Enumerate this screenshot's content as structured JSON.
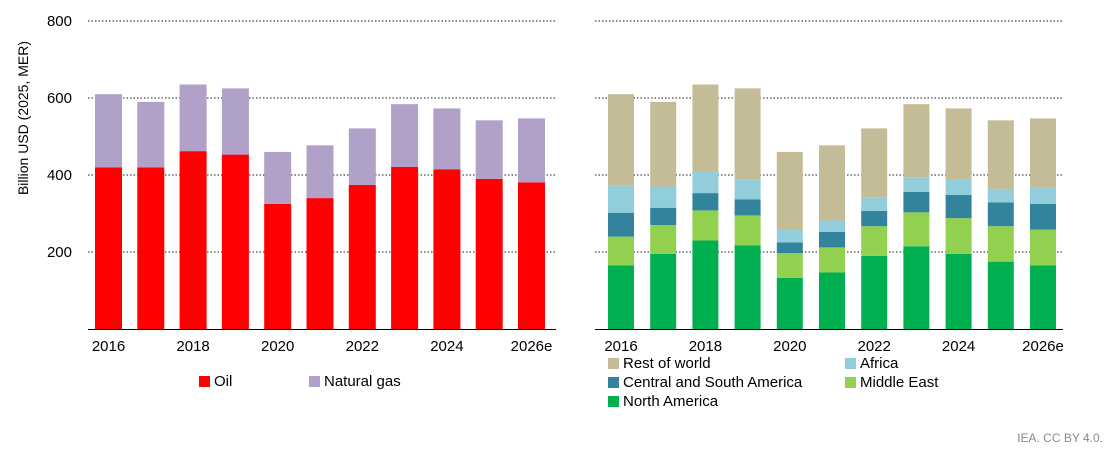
{
  "chart_data": [
    {
      "type": "bar",
      "stacked": true,
      "ylabel": "Billion USD (2025, MER)",
      "ylim": [
        0,
        800
      ],
      "yticks": [
        200,
        400,
        600,
        800
      ],
      "grid": true,
      "categories": [
        "2016",
        "2017",
        "2018",
        "2019",
        "2020",
        "2021",
        "2022",
        "2023",
        "2024",
        "2025",
        "2026e"
      ],
      "xtick_labels": [
        "2016",
        "2018",
        "2020",
        "2022",
        "2024",
        "2026e"
      ],
      "legend_position": "bottom",
      "series": [
        {
          "name": "Oil",
          "color": "#ff0000",
          "values": [
            420,
            420,
            462,
            453,
            325,
            340,
            374,
            421,
            415,
            390,
            381
          ]
        },
        {
          "name": "Natural gas",
          "color": "#b1a0c7",
          "values": [
            190,
            170,
            173,
            172,
            135,
            137,
            147,
            163,
            158,
            152,
            166
          ]
        }
      ]
    },
    {
      "type": "bar",
      "stacked": true,
      "ylim": [
        0,
        800
      ],
      "grid": true,
      "categories": [
        "2016",
        "2017",
        "2018",
        "2019",
        "2020",
        "2021",
        "2022",
        "2023",
        "2024",
        "2025",
        "2026e"
      ],
      "xtick_labels": [
        "2016",
        "2018",
        "2020",
        "2022",
        "2024",
        "2026e"
      ],
      "legend_position": "bottom",
      "series": [
        {
          "name": "North America",
          "color": "#00b050",
          "values": [
            165,
            195,
            230,
            217,
            133,
            147,
            190,
            215,
            195,
            175,
            165
          ]
        },
        {
          "name": "Middle East",
          "color": "#92d050",
          "values": [
            75,
            75,
            78,
            78,
            64,
            65,
            77,
            88,
            93,
            92,
            93
          ]
        },
        {
          "name": "Central and South America",
          "color": "#31849b",
          "values": [
            62,
            45,
            45,
            42,
            28,
            40,
            40,
            53,
            60,
            62,
            67
          ]
        },
        {
          "name": "Africa",
          "color": "#92cddc",
          "values": [
            70,
            55,
            55,
            52,
            32,
            30,
            35,
            38,
            40,
            35,
            42
          ]
        },
        {
          "name": "Rest of world",
          "color": "#c4bc96",
          "values": [
            238,
            220,
            227,
            236,
            203,
            195,
            179,
            190,
            185,
            178,
            180
          ]
        }
      ]
    }
  ],
  "credit": "IEA. CC BY 4.0."
}
